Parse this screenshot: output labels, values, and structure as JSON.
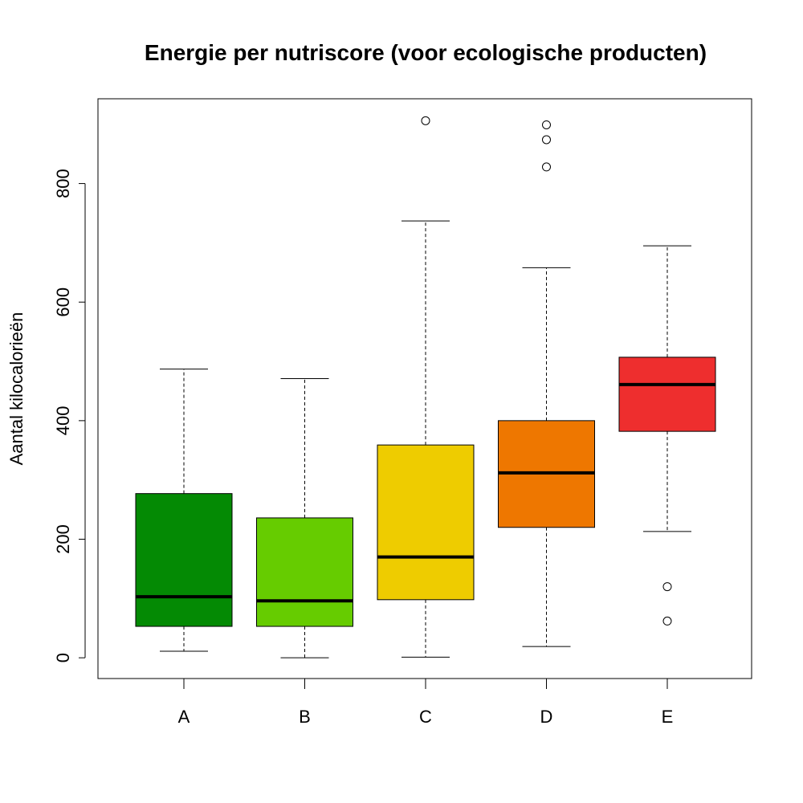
{
  "chart_data": {
    "type": "boxplot",
    "title": "Energie per nutriscore (voor ecologische producten)",
    "xlabel": "",
    "ylabel": "Aantal kilocalorieën",
    "ylim": [
      -35,
      943
    ],
    "yticks": [
      0,
      200,
      400,
      600,
      800
    ],
    "categories": [
      "A",
      "B",
      "C",
      "D",
      "E"
    ],
    "boxes": [
      {
        "category": "A",
        "color": "#048a04",
        "whisker_low": 11,
        "q1": 53,
        "median": 103,
        "q3": 277,
        "whisker_high": 487,
        "outliers": []
      },
      {
        "category": "B",
        "color": "#66cc00",
        "whisker_low": 0,
        "q1": 53,
        "median": 96,
        "q3": 236,
        "whisker_high": 471,
        "outliers": []
      },
      {
        "category": "C",
        "color": "#eecc00",
        "whisker_low": 1,
        "q1": 98,
        "median": 170,
        "q3": 359,
        "whisker_high": 737,
        "outliers": [
          906
        ]
      },
      {
        "category": "D",
        "color": "#ee7700",
        "whisker_low": 19,
        "q1": 220,
        "median": 312,
        "q3": 400,
        "whisker_high": 658,
        "outliers": [
          828,
          874,
          899
        ]
      },
      {
        "category": "E",
        "color": "#ee2e2e",
        "whisker_low": 213,
        "q1": 382,
        "median": 461,
        "q3": 507,
        "whisker_high": 695,
        "outliers": [
          120,
          62
        ]
      }
    ]
  }
}
